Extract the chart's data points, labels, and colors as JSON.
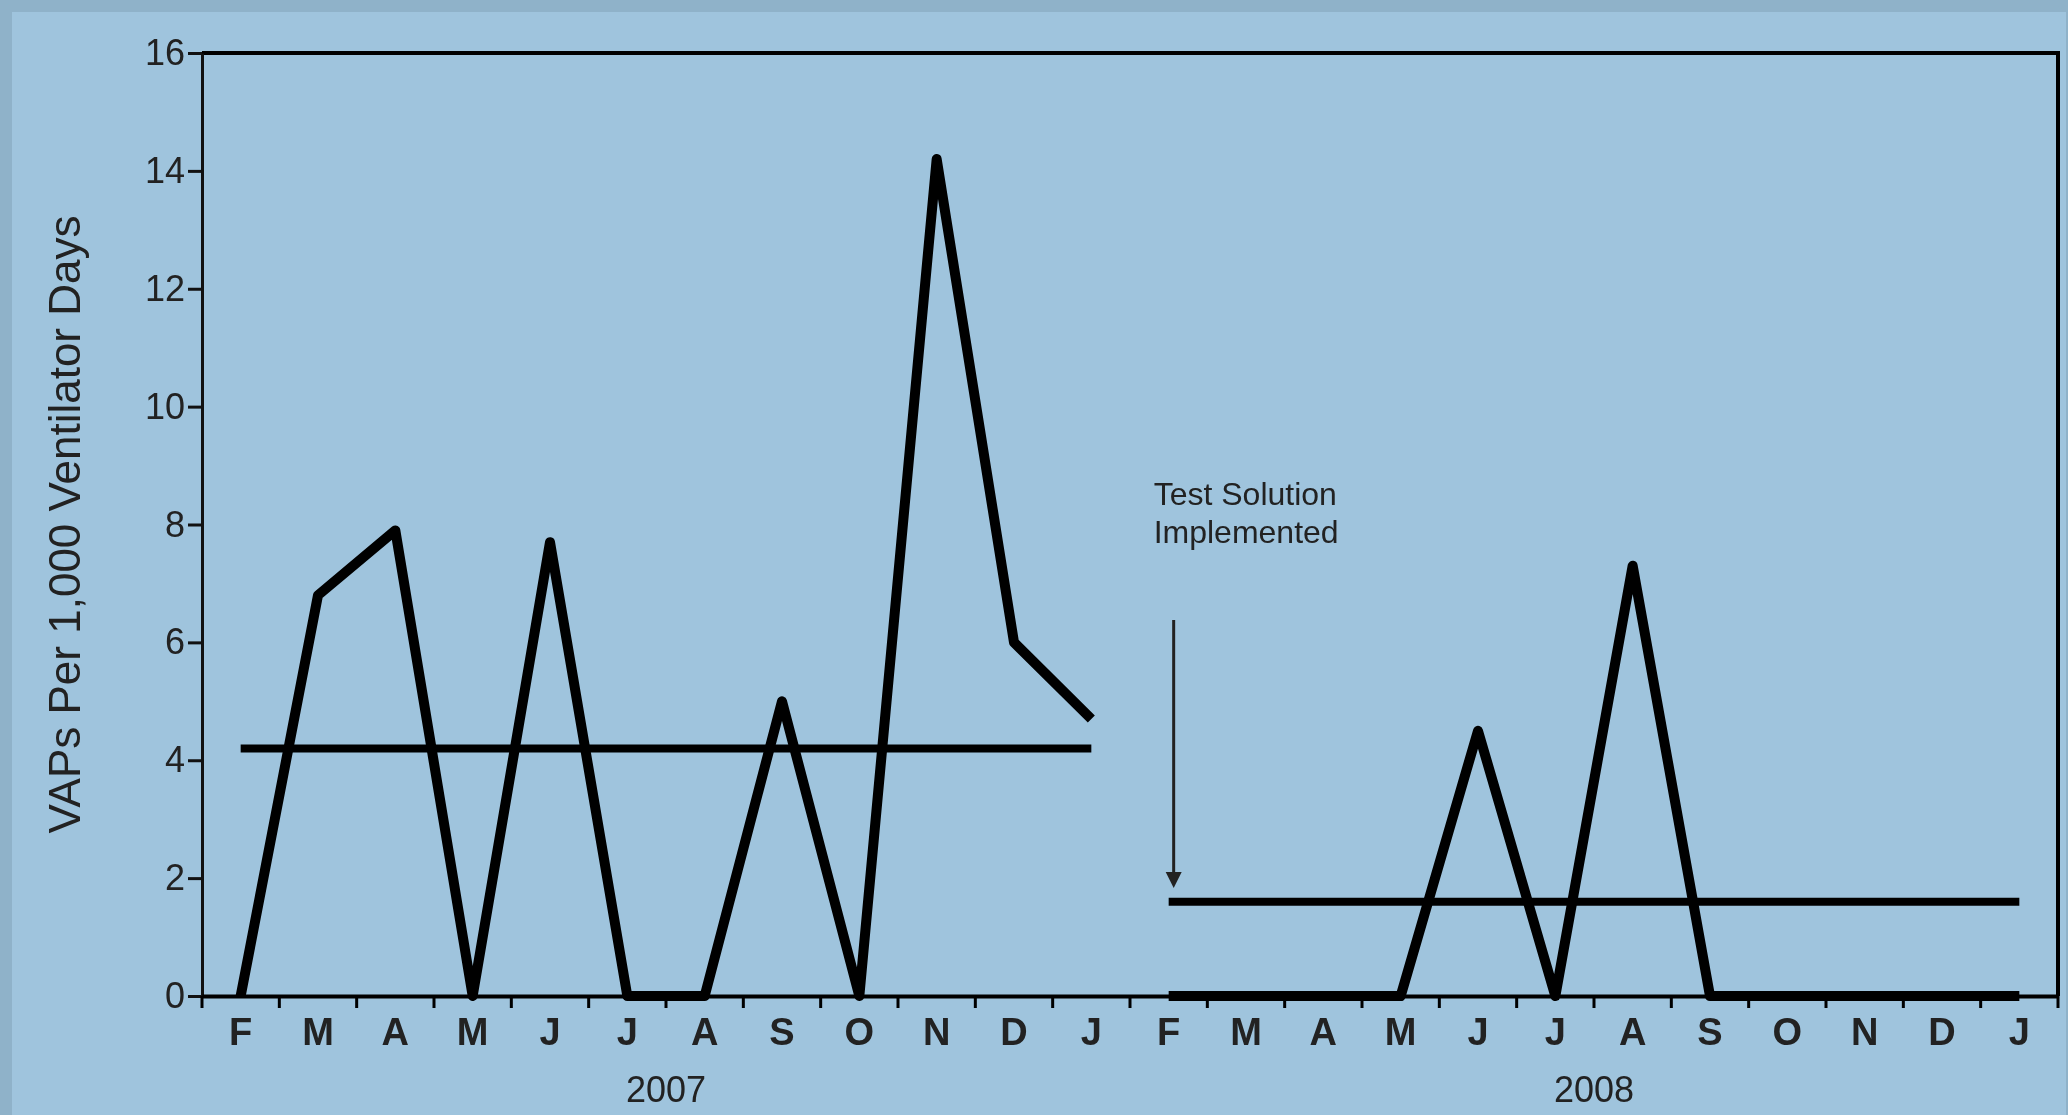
{
  "chart_data": {
    "type": "line",
    "ylabel": "VAPs Per 1,000 Ventilator Days",
    "categories": [
      "F",
      "M",
      "A",
      "M",
      "J",
      "J",
      "A",
      "S",
      "O",
      "N",
      "D",
      "J",
      "F",
      "M",
      "A",
      "M",
      "J",
      "J",
      "A",
      "S",
      "O",
      "N",
      "D",
      "J"
    ],
    "series": [
      {
        "color": "#000000",
        "values": [
          0,
          6.8,
          7.9,
          0,
          7.7,
          0,
          0,
          5,
          0,
          14.2,
          6,
          4.7,
          null,
          null,
          null,
          null,
          null,
          null,
          null,
          null,
          null,
          null,
          null,
          null
        ]
      },
      {
        "color": "#000000",
        "values": [
          null,
          null,
          null,
          null,
          null,
          null,
          null,
          null,
          null,
          null,
          null,
          null,
          0,
          0,
          0,
          0,
          4.5,
          0,
          7.3,
          0,
          0,
          0,
          0,
          0
        ]
      },
      {
        "color": "#000000",
        "values": [
          4.2,
          4.2,
          4.2,
          4.2,
          4.2,
          4.2,
          4.2,
          4.2,
          4.2,
          4.2,
          4.2,
          4.2,
          null,
          null,
          null,
          null,
          null,
          null,
          null,
          null,
          null,
          null,
          null,
          null
        ]
      },
      {
        "color": "#000000",
        "values": [
          null,
          null,
          null,
          null,
          null,
          null,
          null,
          null,
          null,
          null,
          null,
          null,
          1.6,
          1.6,
          1.6,
          1.6,
          1.6,
          1.6,
          1.6,
          1.6,
          1.6,
          1.6,
          1.6,
          1.6
        ]
      }
    ],
    "annotations": [
      "Test Solution Implemented",
      "2007",
      "2008"
    ],
    "ylim": [
      0,
      16
    ],
    "yticks": [
      0,
      2,
      4,
      6,
      8,
      10,
      12,
      14,
      16
    ],
    "grid": false,
    "marker": "none",
    "line_style": "solid"
  }
}
